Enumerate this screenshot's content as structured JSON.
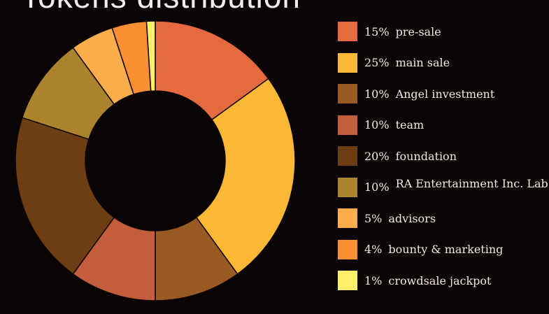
{
  "chart_data": {
    "type": "pie",
    "title": "Tokens distribution",
    "hole": true,
    "slices": [
      {
        "name": "pre-sale",
        "percent_label": "15%",
        "value": 15,
        "color": "#e66a3f"
      },
      {
        "name": "main sale",
        "percent_label": "25%",
        "value": 25,
        "color": "#fdb935"
      },
      {
        "name": "Angel investment",
        "percent_label": "10%",
        "value": 10,
        "color": "#9a5a24"
      },
      {
        "name": "team",
        "percent_label": "10%",
        "value": 10,
        "color": "#c45d3e"
      },
      {
        "name": "foundation",
        "percent_label": "20%",
        "value": 20,
        "color": "#6e3d11"
      },
      {
        "name": "RA Entertainment Inc. Lab",
        "percent_label": "10%",
        "value": 10,
        "color": "#ab832c"
      },
      {
        "name": "advisors",
        "percent_label": "5%",
        "value": 5,
        "color": "#fcad4c"
      },
      {
        "name": "bounty & marketing",
        "percent_label": "4%",
        "value": 4,
        "color": "#fa8f33"
      },
      {
        "name": "crowdsale jackpot",
        "percent_label": "1%",
        "value": 1,
        "color": "#fff06a"
      }
    ],
    "legend_position": "right"
  }
}
